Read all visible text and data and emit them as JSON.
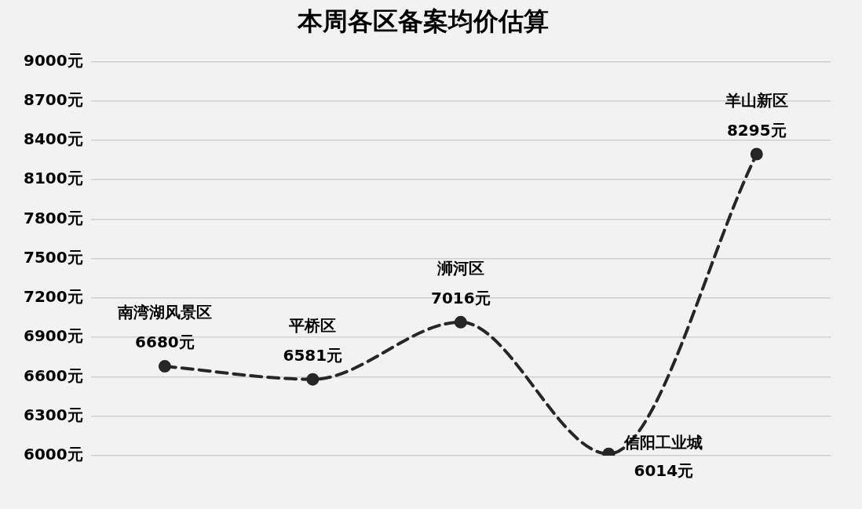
{
  "chart_data": {
    "type": "line",
    "title": "本周各区备案均价估算",
    "categories": [
      "南湾湖风景区",
      "平桥区",
      "浉河区",
      "信阳工业城",
      "羊山新区"
    ],
    "series": [
      {
        "color": "#262626",
        "values": [
          6680,
          6581,
          7016,
          6014,
          8295
        ],
        "value_labels": [
          "6680元",
          "6581元",
          "7016元",
          "6014元",
          "8295元"
        ]
      }
    ],
    "ylim": [
      6000,
      9000
    ],
    "yticks": [
      {
        "value": 6000,
        "label": "6000元"
      },
      {
        "value": 6300,
        "label": "6300元"
      },
      {
        "value": 6600,
        "label": "6600元"
      },
      {
        "value": 6900,
        "label": "6900元"
      },
      {
        "value": 7200,
        "label": "7200元"
      },
      {
        "value": 7500,
        "label": "7500元"
      },
      {
        "value": 7800,
        "label": "7800元"
      },
      {
        "value": 8100,
        "label": "8100元"
      },
      {
        "value": 8400,
        "label": "8400元"
      },
      {
        "value": 8700,
        "label": "8700元"
      },
      {
        "value": 9000,
        "label": "9000元"
      }
    ],
    "grid": "y",
    "legend": false,
    "tick_labels": "y",
    "marker": "circle",
    "line_style": "dashed"
  }
}
